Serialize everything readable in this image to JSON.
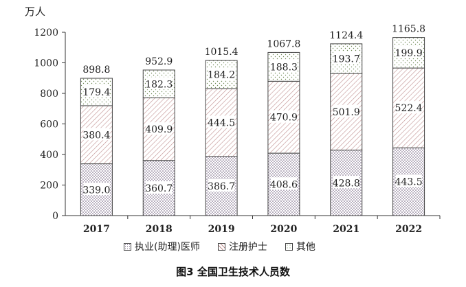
{
  "chart_data": {
    "type": "bar",
    "stacked": true,
    "unit_label": "万人",
    "categories": [
      "2017",
      "2018",
      "2019",
      "2020",
      "2021",
      "2022"
    ],
    "series": [
      {
        "name": "执业(助理)医师",
        "values": [
          339.0,
          360.7,
          386.7,
          408.6,
          428.8,
          443.5
        ],
        "value_labels": [
          "339.0",
          "360.7",
          "386.7",
          "408.6",
          "428.8",
          "443.5"
        ],
        "pattern": "dots"
      },
      {
        "name": "注册护士",
        "values": [
          380.4,
          409.9,
          444.5,
          470.9,
          501.9,
          522.4
        ],
        "value_labels": [
          "380.4",
          "409.9",
          "444.5",
          "470.9",
          "501.9",
          "522.4"
        ],
        "pattern": "hatch"
      },
      {
        "name": "其他",
        "values": [
          179.4,
          182.3,
          184.2,
          188.3,
          193.7,
          199.9
        ],
        "value_labels": [
          "179.4",
          "182.3",
          "184.2",
          "188.3",
          "193.7",
          "199.9"
        ],
        "pattern": "sparse-dots"
      }
    ],
    "totals": [
      898.8,
      952.9,
      1015.4,
      1067.8,
      1124.4,
      1165.8
    ],
    "total_labels": [
      "898.8",
      "952.9",
      "1015.4",
      "1067.8",
      "1124.4",
      "1165.8"
    ],
    "ylim": [
      0,
      1200
    ],
    "yticks": [
      0,
      200,
      400,
      600,
      800,
      1000,
      1200
    ],
    "ytick_labels": [
      "0",
      "200",
      "400",
      "600",
      "800",
      "1000",
      "1200"
    ],
    "legend_position": "bottom",
    "grid": false,
    "title": "图3  全国卫生技术人员数"
  },
  "colors": {
    "axis": "#333333",
    "bar_border": "#444444",
    "dots": "#6b5a7a",
    "hatch": "#c09090",
    "sparse_dots": "#6f8a55"
  }
}
